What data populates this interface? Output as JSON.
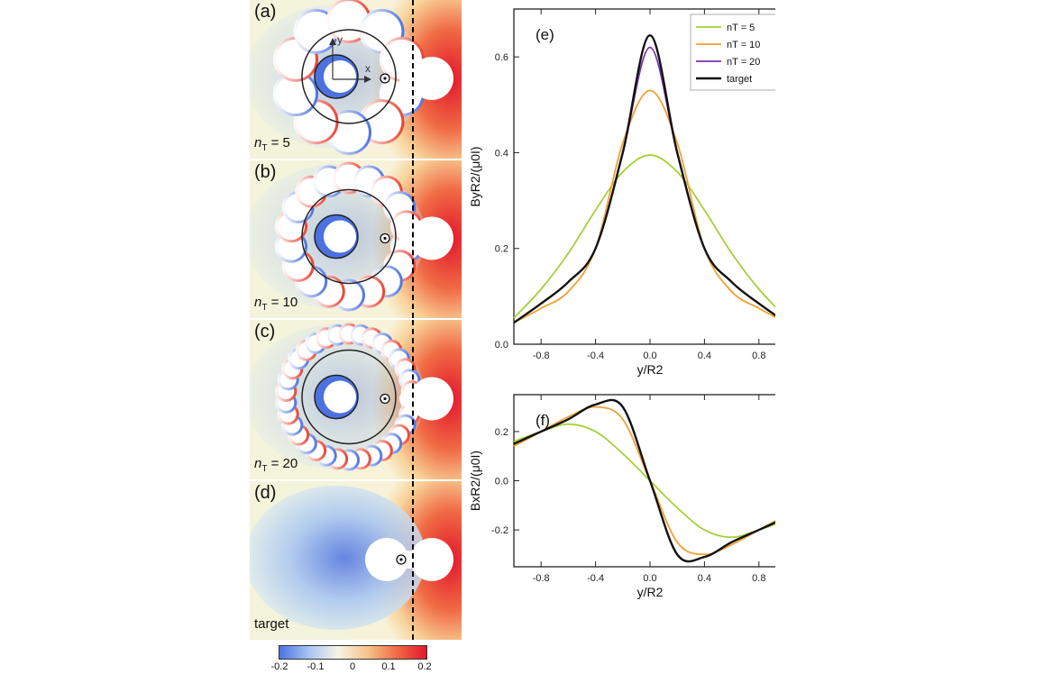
{
  "panels": [
    {
      "label": "(a)",
      "n_prefix": "n",
      "n_sub": "T",
      "n_value": " = 5"
    },
    {
      "label": "(b)",
      "n_prefix": "n",
      "n_sub": "T",
      "n_value": " = 10"
    },
    {
      "label": "(c)",
      "n_prefix": "n",
      "n_sub": "T",
      "n_value": " = 20"
    },
    {
      "label": "(d)",
      "n_prefix": "",
      "n_sub": "",
      "n_value": "target"
    }
  ],
  "axes_labels": {
    "y_axis_arrow": "y",
    "x_axis_arrow": "x"
  },
  "colorbar": {
    "ticks": [
      "-0.2",
      "-0.1",
      "0",
      "0.1",
      "0.2"
    ],
    "colors": [
      "#4c72e0",
      "#f8f4e6",
      "#e2172c"
    ]
  },
  "chart_data": [
    {
      "type": "line",
      "panel_label": "(e)",
      "xlabel": "y/R2",
      "ylabel": "ByR2/(μ0I)",
      "xlim": [
        -1.0,
        1.0
      ],
      "ylim": [
        0.0,
        0.7
      ],
      "xticks": [
        "-0.8",
        "-0.4",
        "0.0",
        "0.4",
        "0.8"
      ],
      "yticks": [
        "0.0",
        "0.2",
        "0.4",
        "0.6"
      ],
      "legend_position": "top-right",
      "x": [
        -1.0,
        -0.8,
        -0.6,
        -0.4,
        -0.2,
        0.0,
        0.2,
        0.4,
        0.6,
        0.8,
        1.0
      ],
      "series": [
        {
          "name": "nT = 5",
          "color": "#a6cf3a",
          "values": [
            0.055,
            0.115,
            0.19,
            0.28,
            0.36,
            0.395,
            0.36,
            0.28,
            0.19,
            0.115,
            0.055
          ]
        },
        {
          "name": "nT = 10",
          "color": "#f0a030",
          "values": [
            0.045,
            0.075,
            0.11,
            0.2,
            0.42,
            0.53,
            0.42,
            0.2,
            0.11,
            0.075,
            0.045
          ]
        },
        {
          "name": "nT = 20",
          "color": "#7a30b0",
          "values": [
            0.045,
            0.085,
            0.13,
            0.2,
            0.4,
            0.62,
            0.4,
            0.2,
            0.13,
            0.085,
            0.045
          ]
        },
        {
          "name": "target",
          "color": "#111111",
          "values": [
            0.045,
            0.085,
            0.13,
            0.2,
            0.4,
            0.645,
            0.4,
            0.2,
            0.13,
            0.085,
            0.045
          ]
        }
      ]
    },
    {
      "type": "line",
      "panel_label": "(f)",
      "xlabel": "y/R2",
      "ylabel": "BxR2/(μ0I)",
      "xlim": [
        -1.0,
        1.0
      ],
      "ylim": [
        -0.35,
        0.35
      ],
      "xticks": [
        "-0.8",
        "-0.4",
        "0.0",
        "0.4",
        "0.8"
      ],
      "yticks": [
        "-0.2",
        "0.0",
        "0.2"
      ],
      "x": [
        -1.0,
        -0.8,
        -0.6,
        -0.4,
        -0.2,
        0.0,
        0.2,
        0.4,
        0.6,
        0.8,
        1.0
      ],
      "series": [
        {
          "name": "nT = 5",
          "color": "#a6cf3a",
          "values": [
            0.16,
            0.2,
            0.23,
            0.2,
            0.11,
            0.0,
            -0.11,
            -0.2,
            -0.23,
            -0.2,
            -0.16
          ]
        },
        {
          "name": "nT = 10",
          "color": "#f0a030",
          "values": [
            0.14,
            0.2,
            0.26,
            0.3,
            0.25,
            0.0,
            -0.25,
            -0.3,
            -0.26,
            -0.2,
            -0.14
          ]
        },
        {
          "name": "nT = 20",
          "color": "#7a30b0",
          "values": [
            0.15,
            0.2,
            0.25,
            0.31,
            0.3,
            0.0,
            -0.3,
            -0.31,
            -0.25,
            -0.2,
            -0.15
          ]
        },
        {
          "name": "target",
          "color": "#111111",
          "values": [
            0.15,
            0.2,
            0.25,
            0.31,
            0.3,
            0.0,
            -0.3,
            -0.31,
            -0.25,
            -0.2,
            -0.15
          ]
        }
      ]
    }
  ]
}
